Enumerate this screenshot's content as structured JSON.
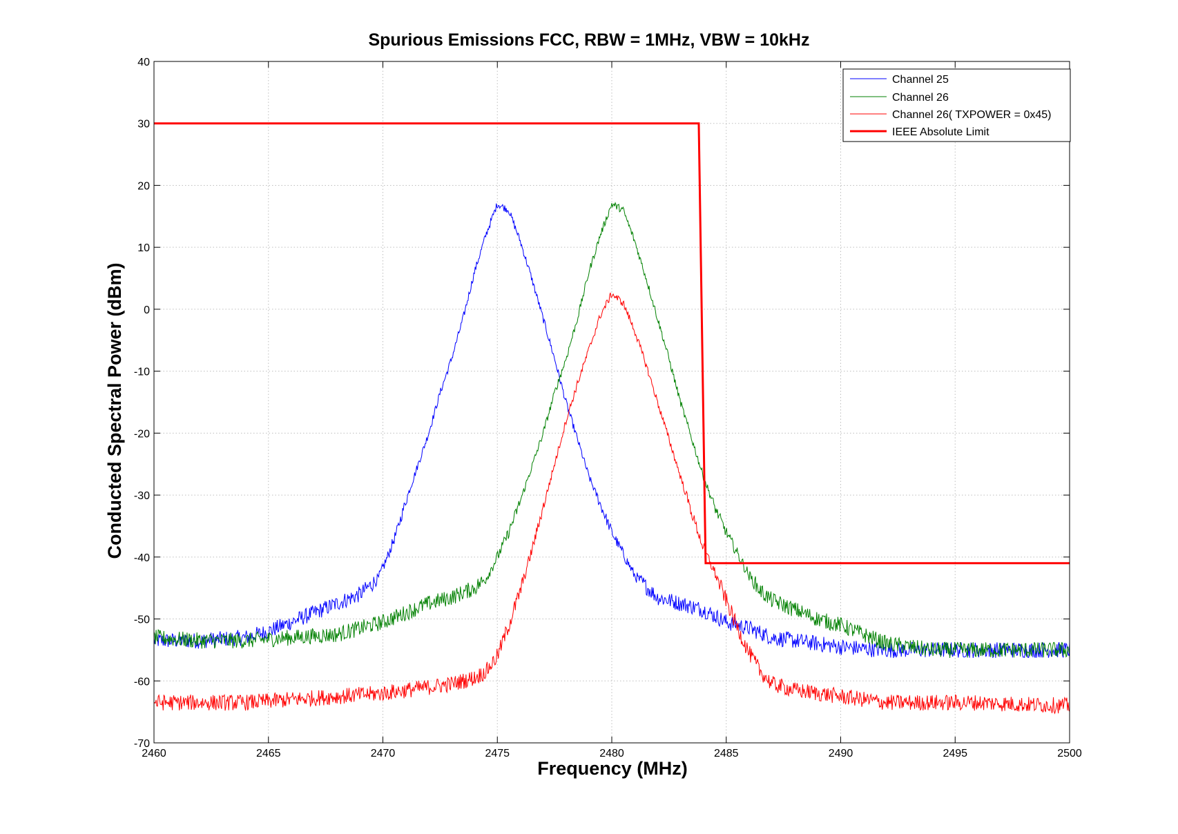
{
  "chart_data": {
    "type": "line",
    "title": "Spurious Emissions FCC, RBW = 1MHz, VBW = 10kHz",
    "xlabel": "Frequency (MHz)",
    "ylabel": "Conducted Spectral Power (dBm)",
    "xlim": [
      2460,
      2500
    ],
    "ylim": [
      -70,
      40
    ],
    "xticks": [
      2460,
      2465,
      2470,
      2475,
      2480,
      2485,
      2490,
      2495,
      2500
    ],
    "yticks": [
      40,
      30,
      20,
      10,
      0,
      -10,
      -20,
      -30,
      -40,
      -50,
      -60,
      -70
    ],
    "xtick_labels": [
      "2460",
      "2465",
      "2470",
      "2475",
      "2480",
      "2485",
      "2490",
      "2495",
      "2500"
    ],
    "ytick_labels": [
      "40",
      "30",
      "20",
      "10",
      "0",
      "-10",
      "-20",
      "-30",
      "-40",
      "-50",
      "-60",
      "-70"
    ],
    "grid": true,
    "legend_position": "top-right",
    "series": [
      {
        "name": "Channel 25",
        "color": "#0000ff",
        "style": "thin",
        "x": [
          2460,
          2462,
          2464,
          2465,
          2466,
          2467,
          2468,
          2469,
          2469.8,
          2470.2,
          2470.6,
          2471,
          2471.5,
          2472,
          2472.5,
          2473,
          2473.5,
          2474,
          2474.5,
          2475,
          2475.5,
          2476,
          2476.5,
          2477,
          2477.5,
          2478,
          2478.5,
          2479,
          2479.5,
          2480,
          2480.5,
          2481,
          2482,
          2483,
          2484,
          2485,
          2486,
          2487,
          2488,
          2489,
          2490,
          2491,
          2492,
          2494,
          2496,
          2498,
          2500
        ],
        "y": [
          -53.5,
          -53.5,
          -53,
          -52,
          -50.5,
          -49,
          -47.5,
          -46,
          -43.5,
          -40,
          -36,
          -31,
          -25.5,
          -20,
          -13.5,
          -8,
          -1.5,
          6,
          12,
          17,
          16,
          11,
          5,
          -1.5,
          -8,
          -15,
          -21,
          -27,
          -31.5,
          -36,
          -39.5,
          -43,
          -46.5,
          -47.5,
          -48.5,
          -50.5,
          -51.5,
          -53,
          -53.5,
          -54,
          -54.5,
          -54.8,
          -55,
          -55,
          -55,
          -55,
          -55
        ]
      },
      {
        "name": "Channel 26",
        "color": "#008000",
        "style": "thin",
        "x": [
          2460,
          2462,
          2464,
          2466,
          2468,
          2469,
          2470,
          2471,
          2472,
          2473,
          2474,
          2474.5,
          2475,
          2475.5,
          2476,
          2476.5,
          2477,
          2477.5,
          2478,
          2478.5,
          2479,
          2479.5,
          2480,
          2480.5,
          2481,
          2481.5,
          2482,
          2482.5,
          2483,
          2483.5,
          2484,
          2484.5,
          2485,
          2485.5,
          2486,
          2486.5,
          2487,
          2488,
          2489,
          2490,
          2491,
          2492,
          2494,
          2496,
          2498,
          2500
        ],
        "y": [
          -53,
          -53.5,
          -53.5,
          -53,
          -52.5,
          -51.5,
          -50.5,
          -49,
          -47.5,
          -46.5,
          -45,
          -43.5,
          -40,
          -36,
          -31,
          -25.5,
          -20,
          -13.5,
          -8,
          -1.5,
          6,
          12,
          17,
          16,
          11,
          5,
          -1.5,
          -8,
          -15,
          -21,
          -27,
          -32,
          -36,
          -39.5,
          -43,
          -45.5,
          -47,
          -48.5,
          -50,
          -51,
          -52.5,
          -54,
          -55,
          -55,
          -55,
          -55
        ]
      },
      {
        "name": "Channel 26( TXPOWER = 0x45)",
        "color": "#ff0000",
        "style": "thin",
        "x": [
          2460,
          2462,
          2464,
          2466,
          2468,
          2470,
          2471,
          2472,
          2473,
          2474,
          2474.5,
          2475,
          2475.5,
          2476,
          2476.5,
          2477,
          2477.5,
          2478,
          2478.5,
          2479,
          2479.5,
          2480,
          2480.5,
          2481,
          2481.5,
          2482,
          2482.5,
          2483,
          2483.5,
          2484,
          2484.5,
          2485,
          2485.5,
          2486,
          2486.5,
          2487,
          2488,
          2489,
          2490,
          2491,
          2492,
          2494,
          2496,
          2498,
          2500
        ],
        "y": [
          -63.5,
          -63.5,
          -63.5,
          -63,
          -62.5,
          -62,
          -61.5,
          -61,
          -60.5,
          -59.5,
          -58.5,
          -56,
          -51,
          -45.5,
          -39,
          -32,
          -25,
          -18,
          -12,
          -6.5,
          -1,
          2.5,
          1,
          -3.5,
          -9,
          -15,
          -21,
          -27,
          -33,
          -38.5,
          -42.5,
          -47,
          -51.5,
          -55.5,
          -58.5,
          -60.5,
          -61.5,
          -62,
          -62.5,
          -63,
          -63.5,
          -63.5,
          -63.5,
          -63.8,
          -64
        ]
      },
      {
        "name": "IEEE Absolute Limit",
        "color": "#ff0000",
        "style": "thick",
        "x": [
          2460,
          2483.8,
          2484.1,
          2500
        ],
        "y": [
          30,
          30,
          -41,
          -41
        ]
      }
    ]
  },
  "colors": {
    "channel25": "#0000ff",
    "channel26": "#008000",
    "channel26_low": "#ff0000",
    "limit": "#ff0000"
  }
}
